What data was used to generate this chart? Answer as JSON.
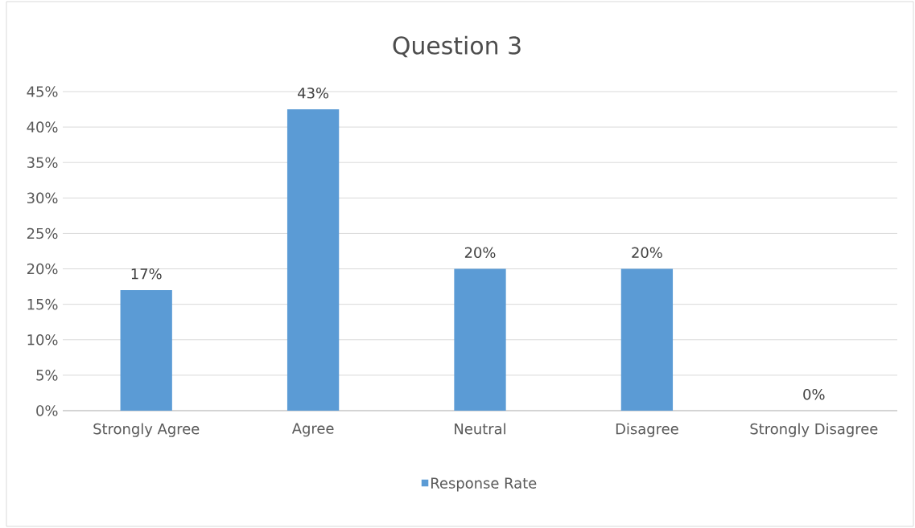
{
  "chart_data": {
    "type": "bar",
    "title": "Question 3",
    "categories": [
      "Strongly Agree",
      "Agree",
      "Neutral",
      "Disagree",
      "Strongly Disagree"
    ],
    "series": [
      {
        "name": "Response Rate",
        "color": "#5b9bd5",
        "values": [
          17,
          42.5,
          20,
          20,
          0
        ],
        "value_labels": [
          "17%",
          "43%",
          "20%",
          "20%",
          "0%"
        ]
      }
    ],
    "ylim": [
      0,
      45
    ],
    "yticks": [
      {
        "value": 0,
        "label": "0%"
      },
      {
        "value": 5,
        "label": "5%"
      },
      {
        "value": 10,
        "label": "10%"
      },
      {
        "value": 15,
        "label": "15%"
      },
      {
        "value": 20,
        "label": "20%"
      },
      {
        "value": 25,
        "label": "25%"
      },
      {
        "value": 30,
        "label": "30%"
      },
      {
        "value": 35,
        "label": "35%"
      },
      {
        "value": 40,
        "label": "40%"
      },
      {
        "value": 45,
        "label": "45%"
      }
    ],
    "grid": "y",
    "legend": "bottom"
  }
}
